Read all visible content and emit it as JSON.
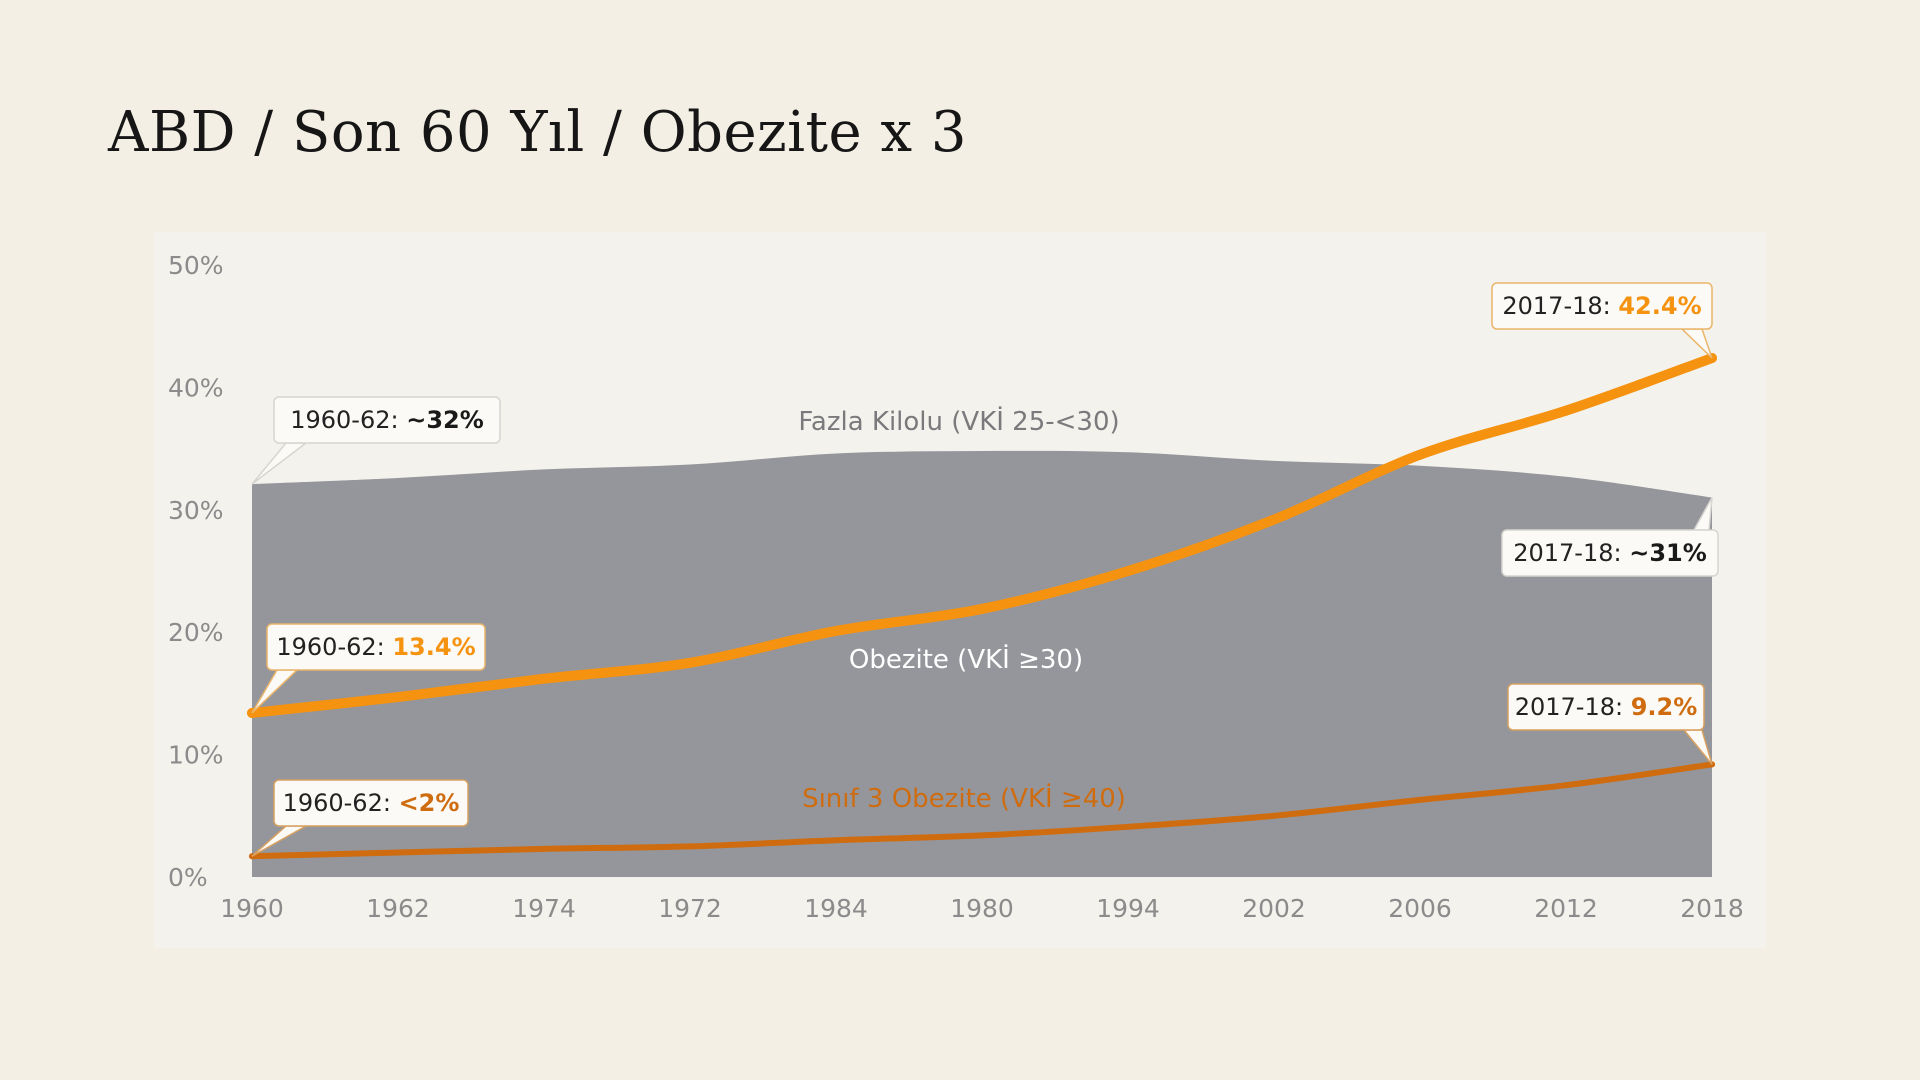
{
  "title": "ABD / Son 60 Yıl / Obezite x 3",
  "colors": {
    "background": "#f3efe5",
    "panel": "#f4f2ec",
    "area": "#95969b",
    "obesity": "#f59210",
    "severe": "#cf6c10",
    "axis_text": "#8b8b8b"
  },
  "chart_data": {
    "type": "line",
    "title": "",
    "xlabel": "",
    "ylabel": "",
    "ylim": [
      0,
      50
    ],
    "yticks": [
      "0%",
      "10%",
      "20%",
      "30%",
      "40%",
      "50%"
    ],
    "categories": [
      "1960",
      "1962",
      "1974",
      "1972",
      "1984",
      "1980",
      "1994",
      "2002",
      "2006",
      "2012",
      "2018"
    ],
    "series": [
      {
        "name": "Fazla Kilolu (VKİ 25-<30)",
        "kind": "area",
        "points": [
          [
            0,
            32.1
          ],
          [
            1,
            32.6
          ],
          [
            2,
            33.3
          ],
          [
            3,
            33.7
          ],
          [
            4,
            34.6
          ],
          [
            5,
            34.8
          ],
          [
            6,
            34.7
          ],
          [
            7,
            34.0
          ],
          [
            8,
            33.6
          ],
          [
            9,
            32.7
          ],
          [
            10,
            31.0
          ]
        ]
      },
      {
        "name": "Obezite (VKİ ≥30)",
        "kind": "line",
        "points": [
          [
            0,
            13.4
          ],
          [
            1,
            14.7
          ],
          [
            2,
            16.2
          ],
          [
            3,
            17.5
          ],
          [
            4,
            20.1
          ],
          [
            5,
            21.9
          ],
          [
            6,
            25.0
          ],
          [
            7,
            29.2
          ],
          [
            8,
            34.5
          ],
          [
            9,
            38.1
          ],
          [
            10,
            42.4
          ]
        ]
      },
      {
        "name": "Sınıf 3 Obezite (VKİ ≥40)",
        "kind": "line",
        "points": [
          [
            0,
            1.7
          ],
          [
            1,
            2.0
          ],
          [
            2,
            2.3
          ],
          [
            3,
            2.5
          ],
          [
            4,
            3.0
          ],
          [
            5,
            3.4
          ],
          [
            6,
            4.1
          ],
          [
            7,
            5.0
          ],
          [
            8,
            6.3
          ],
          [
            9,
            7.5
          ],
          [
            10,
            9.2
          ]
        ]
      }
    ],
    "annotations": [
      {
        "prefix": "1960-62: ",
        "value": "~32%",
        "style": "dark",
        "series": 0,
        "point": 0
      },
      {
        "prefix": "2017-18: ",
        "value": "~31%",
        "style": "dark",
        "series": 0,
        "point": 10
      },
      {
        "prefix": "1960-62: ",
        "value": "13.4%",
        "style": "orange",
        "series": 1,
        "point": 0
      },
      {
        "prefix": "2017-18: ",
        "value": "42.4%",
        "style": "orange",
        "series": 1,
        "point": 10
      },
      {
        "prefix": "1960-62: ",
        "value": "<2%",
        "style": "darkorange",
        "series": 2,
        "point": 0
      },
      {
        "prefix": "2017-18: ",
        "value": "9.2%",
        "style": "darkorange",
        "series": 2,
        "point": 10
      }
    ]
  }
}
